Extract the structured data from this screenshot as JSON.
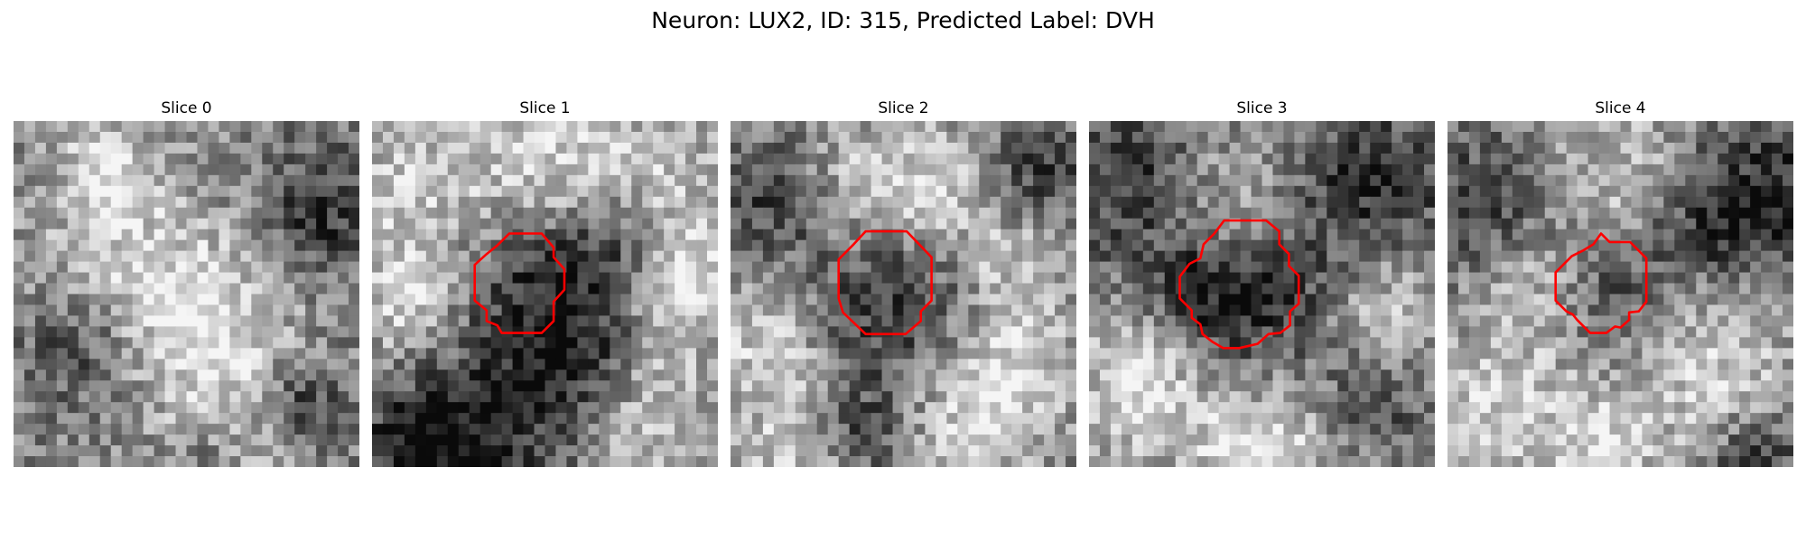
{
  "figure": {
    "title": "Neuron: LUX2, ID: 315, Predicted Label: DVH"
  },
  "panels": [
    {
      "title": "Slice 0",
      "outline": false,
      "light": [
        [
          10,
          13,
          7
        ],
        [
          18,
          20,
          6
        ],
        [
          8,
          3,
          3
        ],
        [
          20,
          30,
          4
        ]
      ],
      "dark": [
        [
          6,
          20,
          4
        ],
        [
          28,
          8,
          4
        ],
        [
          26,
          26,
          3
        ],
        [
          18,
          31,
          3
        ]
      ]
    },
    {
      "title": "Slice 1",
      "outline": true,
      "light": [
        [
          4,
          6,
          6
        ],
        [
          16,
          4,
          5
        ],
        [
          26,
          7,
          6
        ],
        [
          3,
          17,
          4
        ],
        [
          24,
          26,
          5
        ],
        [
          28,
          15,
          4
        ]
      ],
      "dark": [
        [
          15,
          14,
          6
        ],
        [
          10,
          28,
          6
        ],
        [
          22,
          11,
          4
        ],
        [
          19,
          22,
          4
        ],
        [
          4,
          30,
          4
        ]
      ]
    },
    {
      "title": "Slice 2",
      "outline": true,
      "light": [
        [
          11,
          6,
          5
        ],
        [
          20,
          5,
          4
        ],
        [
          26,
          12,
          4
        ],
        [
          3,
          20,
          4
        ],
        [
          21,
          29,
          5
        ],
        [
          5,
          30,
          4
        ],
        [
          26,
          22,
          4
        ]
      ],
      "dark": [
        [
          14,
          16,
          5
        ],
        [
          4,
          7,
          4
        ],
        [
          27,
          5,
          4
        ],
        [
          12,
          28,
          3
        ]
      ]
    },
    {
      "title": "Slice 3",
      "outline": true,
      "light": [
        [
          12,
          7,
          5
        ],
        [
          5,
          20,
          4
        ],
        [
          4,
          26,
          4
        ],
        [
          19,
          28,
          6
        ],
        [
          27,
          17,
          4
        ],
        [
          14,
          30,
          3
        ]
      ],
      "dark": [
        [
          16,
          16,
          6
        ],
        [
          4,
          5,
          5
        ],
        [
          26,
          5,
          5
        ],
        [
          25,
          26,
          4
        ],
        [
          9,
          16,
          4
        ]
      ]
    },
    {
      "title": "Slice 4",
      "outline": true,
      "light": [
        [
          15,
          6,
          6
        ],
        [
          4,
          26,
          5
        ],
        [
          24,
          22,
          6
        ],
        [
          14,
          30,
          4
        ],
        [
          7,
          15,
          4
        ]
      ],
      "dark": [
        [
          15,
          15,
          4
        ],
        [
          30,
          6,
          5
        ],
        [
          4,
          8,
          5
        ],
        [
          28,
          31,
          3
        ],
        [
          23,
          9,
          4
        ]
      ]
    }
  ]
}
